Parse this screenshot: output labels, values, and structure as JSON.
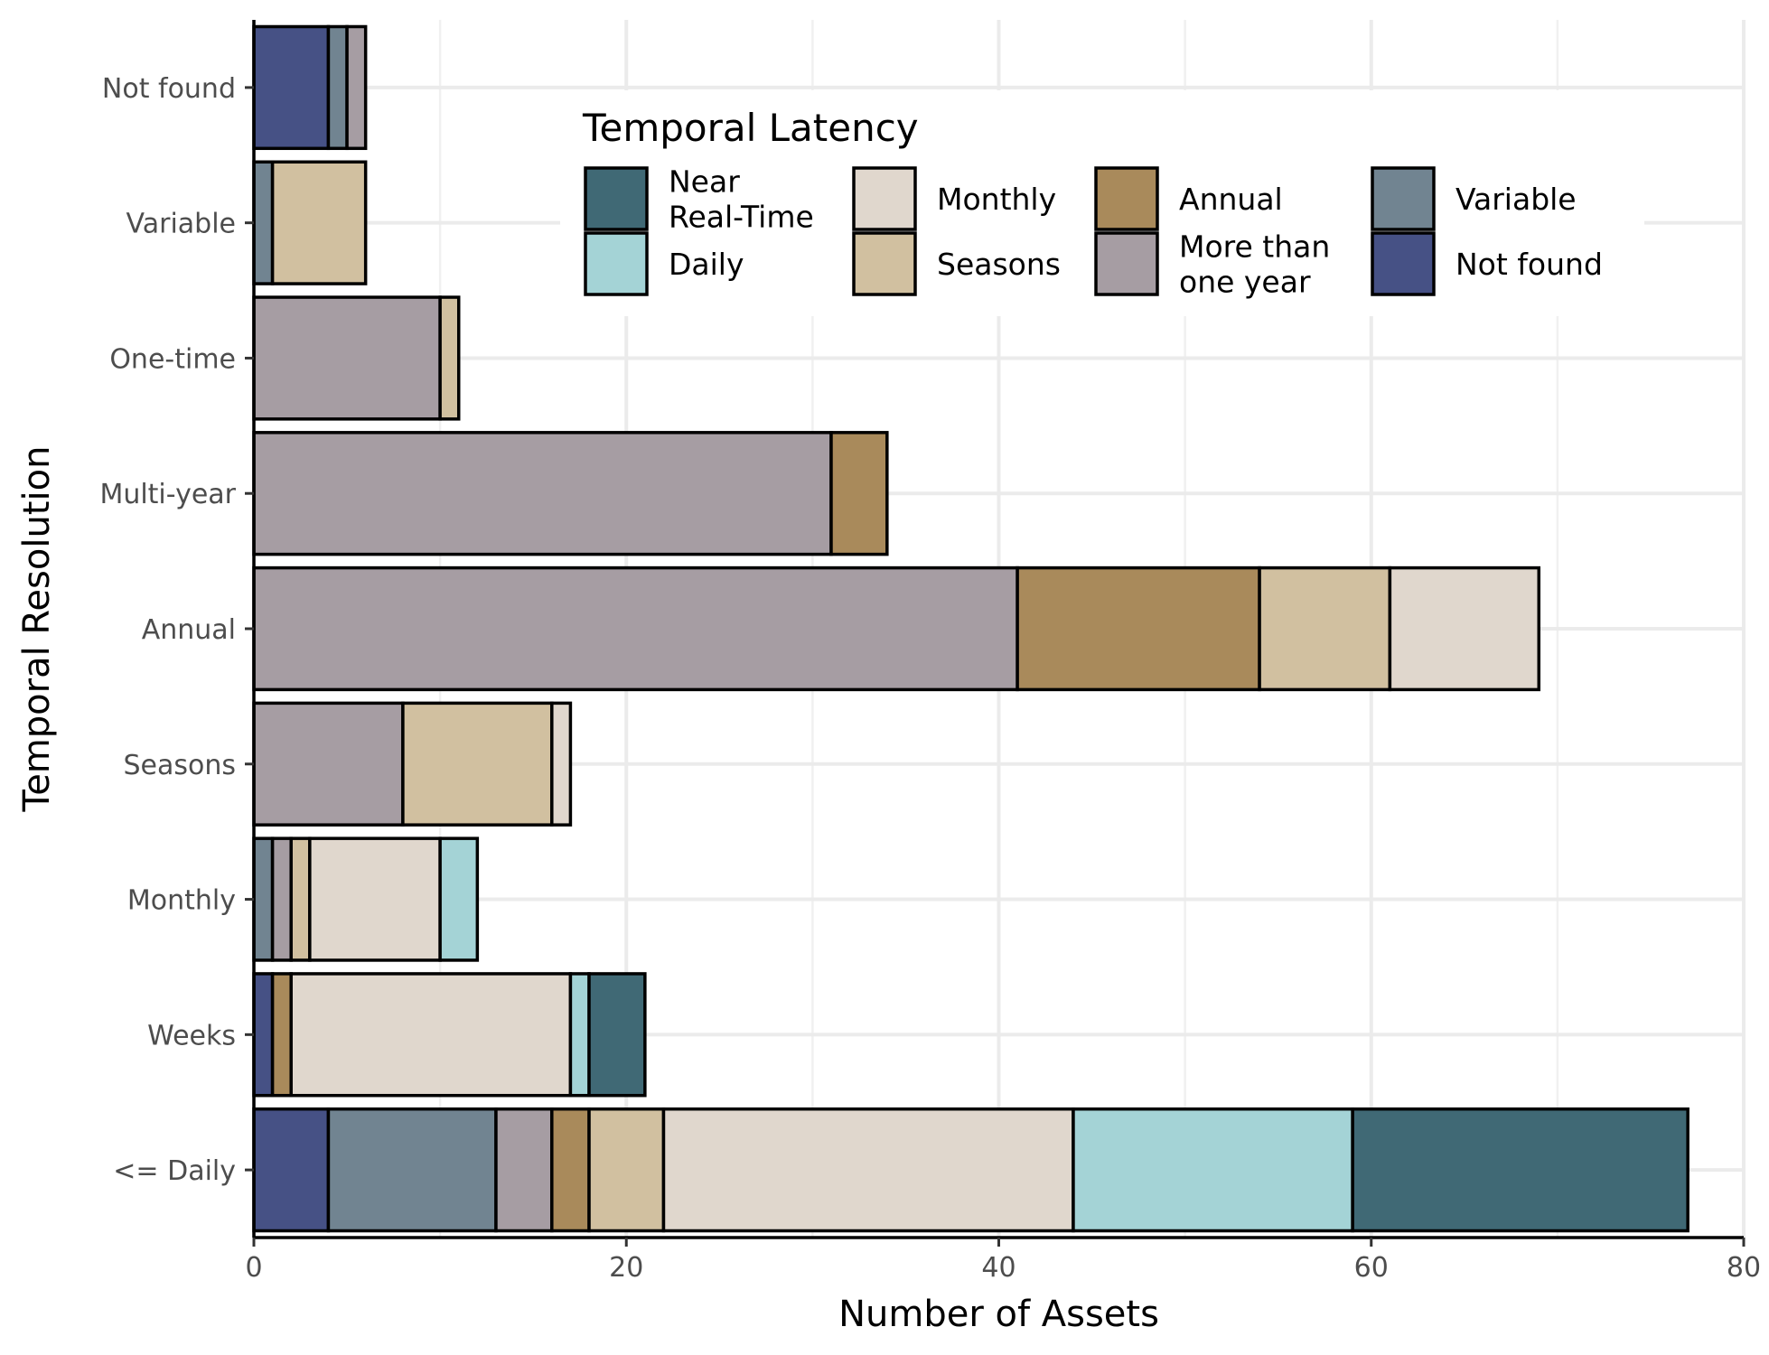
{
  "chart_data": {
    "type": "bar",
    "orientation": "horizontal",
    "stacked": true,
    "xlabel": "Number of Assets",
    "ylabel": "Temporal Resolution",
    "xlim": [
      0,
      80
    ],
    "xticks": [
      0,
      20,
      40,
      60,
      80
    ],
    "grid": true,
    "legend_title": "Temporal Latency",
    "legend_position": "top-right",
    "categories": [
      "<= Daily",
      "Weeks",
      "Monthly",
      "Seasons",
      "Annual",
      "Multi-year",
      "One-time",
      "Variable",
      "Not found"
    ],
    "series": [
      {
        "name": "Not found",
        "color": "#465185",
        "values": [
          4,
          1,
          0,
          0,
          0,
          0,
          0,
          0,
          4
        ]
      },
      {
        "name": "Variable",
        "color": "#718491",
        "values": [
          9,
          0,
          1,
          0,
          0,
          0,
          0,
          1,
          1
        ]
      },
      {
        "name": "More than\none year",
        "color": "#a69da3",
        "values": [
          3,
          0,
          1,
          8,
          41,
          31,
          10,
          0,
          1
        ]
      },
      {
        "name": "Annual",
        "color": "#a98a5b",
        "values": [
          2,
          1,
          0,
          0,
          13,
          3,
          0,
          0,
          0
        ]
      },
      {
        "name": "Seasons",
        "color": "#d1c0a0",
        "values": [
          4,
          0,
          1,
          8,
          7,
          0,
          1,
          5,
          0
        ]
      },
      {
        "name": "Monthly",
        "color": "#e0d7cd",
        "values": [
          22,
          15,
          7,
          1,
          8,
          0,
          0,
          0,
          0
        ]
      },
      {
        "name": "Daily",
        "color": "#a4d3d6",
        "values": [
          15,
          1,
          2,
          0,
          0,
          0,
          0,
          0,
          0
        ]
      },
      {
        "name": "Near\nReal-Time",
        "color": "#406975",
        "values": [
          18,
          3,
          0,
          0,
          0,
          0,
          0,
          0,
          0
        ]
      }
    ],
    "legend_order": [
      "Near\nReal-Time",
      "Daily",
      "Monthly",
      "Seasons",
      "Annual",
      "More than\none year",
      "Variable",
      "Not found"
    ]
  }
}
